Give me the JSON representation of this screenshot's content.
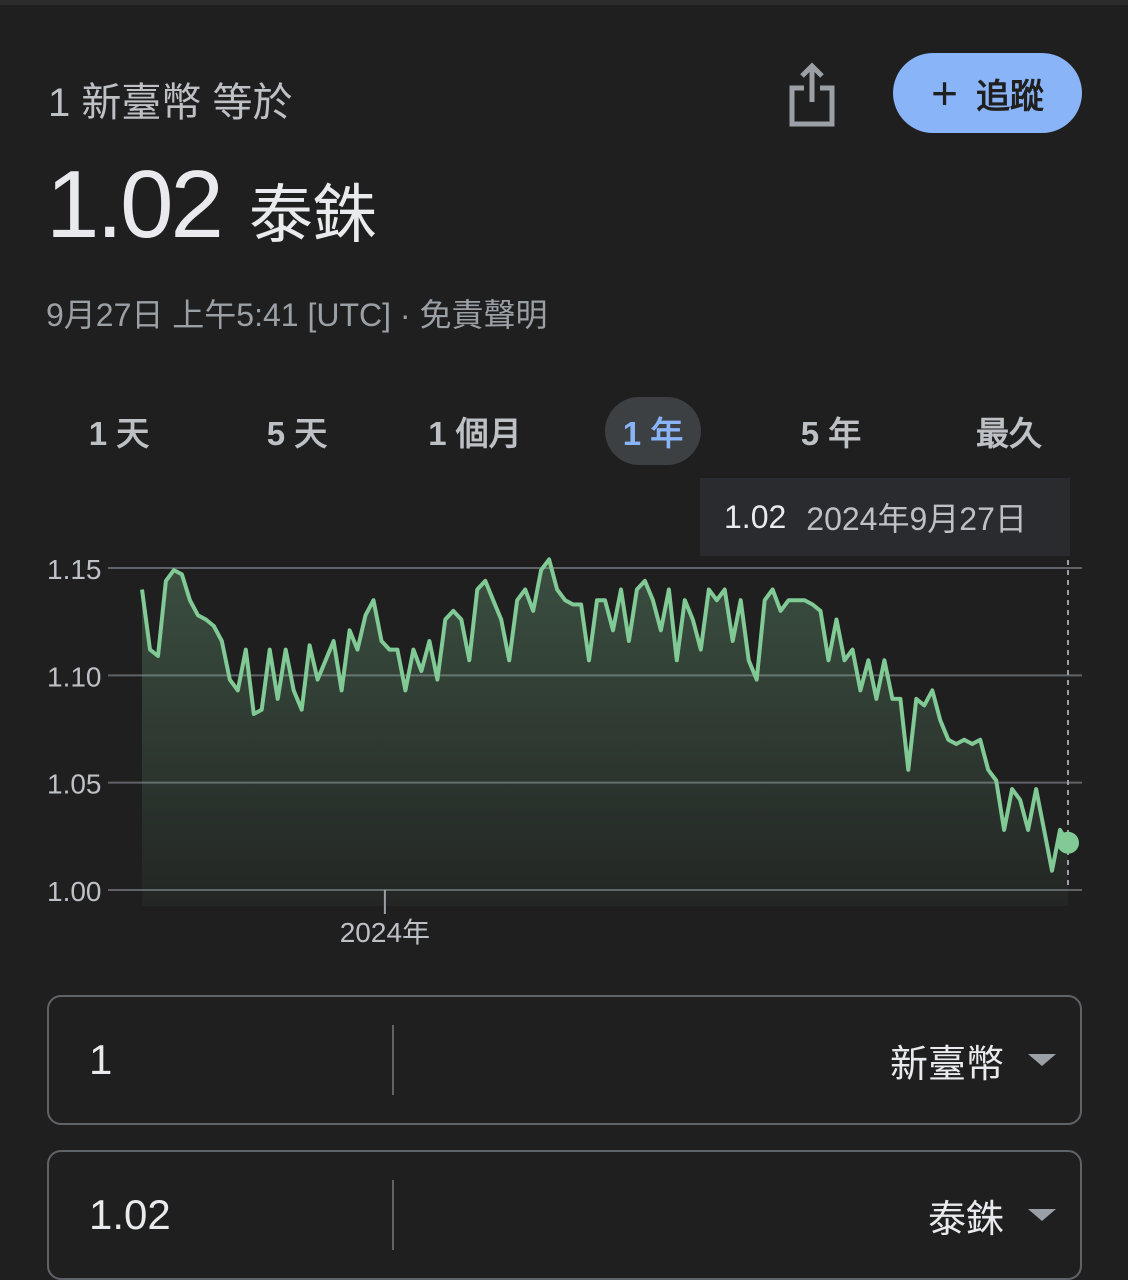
{
  "header": {
    "subtitle": "1 新臺幣 等於",
    "value": "1.02",
    "currency": "泰銖",
    "meta": "9月27日 上午5:41 [UTC] · 免責聲明",
    "track_label": "追蹤",
    "share_icon": "share-icon",
    "plus_icon": "plus-icon"
  },
  "tabs": [
    {
      "label": "1 天"
    },
    {
      "label": "5 天"
    },
    {
      "label": "1 個月"
    },
    {
      "label": "1 年",
      "selected": true
    },
    {
      "label": "5 年"
    },
    {
      "label": "最久"
    }
  ],
  "tooltip": {
    "value": "1.02",
    "date": "2024年9月27日"
  },
  "colors": {
    "line": "#81c995",
    "accent": "#8ab4f8",
    "background": "#1f1f1f"
  },
  "chart_data": {
    "type": "area",
    "x_range": [
      "2023-09-27",
      "2024-09-27"
    ],
    "x_ticks": [
      "2024年"
    ],
    "y_ticks": [
      "1.00",
      "1.05",
      "1.10",
      "1.15"
    ],
    "ylim": [
      1.0,
      1.15
    ],
    "grid": true,
    "values": [
      1.14,
      1.112,
      1.109,
      1.144,
      1.149,
      1.147,
      1.135,
      1.128,
      1.126,
      1.123,
      1.116,
      1.098,
      1.093,
      1.112,
      1.082,
      1.084,
      1.112,
      1.089,
      1.112,
      1.093,
      1.084,
      1.114,
      1.098,
      1.107,
      1.116,
      1.093,
      1.121,
      1.112,
      1.128,
      1.135,
      1.116,
      1.112,
      1.112,
      1.093,
      1.112,
      1.102,
      1.116,
      1.098,
      1.126,
      1.13,
      1.126,
      1.107,
      1.14,
      1.144,
      1.135,
      1.126,
      1.107,
      1.135,
      1.14,
      1.13,
      1.149,
      1.154,
      1.14,
      1.135,
      1.133,
      1.133,
      1.107,
      1.135,
      1.135,
      1.121,
      1.14,
      1.116,
      1.14,
      1.144,
      1.135,
      1.121,
      1.14,
      1.107,
      1.135,
      1.126,
      1.112,
      1.14,
      1.135,
      1.14,
      1.116,
      1.135,
      1.107,
      1.098,
      1.135,
      1.14,
      1.13,
      1.135,
      1.135,
      1.135,
      1.133,
      1.13,
      1.107,
      1.126,
      1.107,
      1.112,
      1.093,
      1.107,
      1.089,
      1.107,
      1.089,
      1.089,
      1.056,
      1.089,
      1.086,
      1.093,
      1.079,
      1.07,
      1.068,
      1.07,
      1.068,
      1.07,
      1.056,
      1.051,
      1.028,
      1.047,
      1.042,
      1.028,
      1.047,
      1.028,
      1.009,
      1.028,
      1.022
    ]
  },
  "converter": {
    "from": {
      "amount": "1",
      "currency": "新臺幣"
    },
    "to": {
      "amount": "1.02",
      "currency": "泰銖"
    }
  }
}
